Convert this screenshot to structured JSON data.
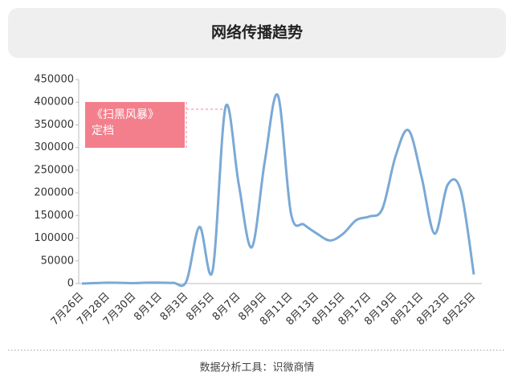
{
  "header": {
    "title": "网络传播趋势"
  },
  "chart_data": {
    "type": "line",
    "categories": [
      "7月26日",
      null,
      "7月28日",
      null,
      "7月30日",
      null,
      "8月1日",
      null,
      "8月3日",
      null,
      "8月5日",
      null,
      "8月7日",
      null,
      "8月9日",
      null,
      "8月11日",
      null,
      "8月13日",
      null,
      "8月15日",
      null,
      "8月17日",
      null,
      "8月19日",
      null,
      "8月21日",
      null,
      "8月23日",
      null,
      "8月25日"
    ],
    "series": [
      {
        "color": "#7aa9d6",
        "values": [
          0,
          1000,
          2000,
          1500,
          1000,
          2000,
          2000,
          1500,
          5000,
          125000,
          28000,
          390000,
          220000,
          80000,
          270000,
          415000,
          155000,
          130000,
          110000,
          95000,
          110000,
          140000,
          148000,
          165000,
          280000,
          338000,
          235000,
          110000,
          218000,
          205000,
          20000
        ]
      }
    ],
    "ylim": [
      0,
      450000
    ],
    "yticks": [
      0,
      50000,
      100000,
      150000,
      200000,
      250000,
      300000,
      350000,
      400000,
      450000
    ],
    "grid": false,
    "annotation": {
      "lines": [
        "《扫黑风暴》",
        "定档"
      ],
      "color": "#f47f8c"
    }
  },
  "footer": {
    "source": "数据分析工具：识微商情"
  }
}
